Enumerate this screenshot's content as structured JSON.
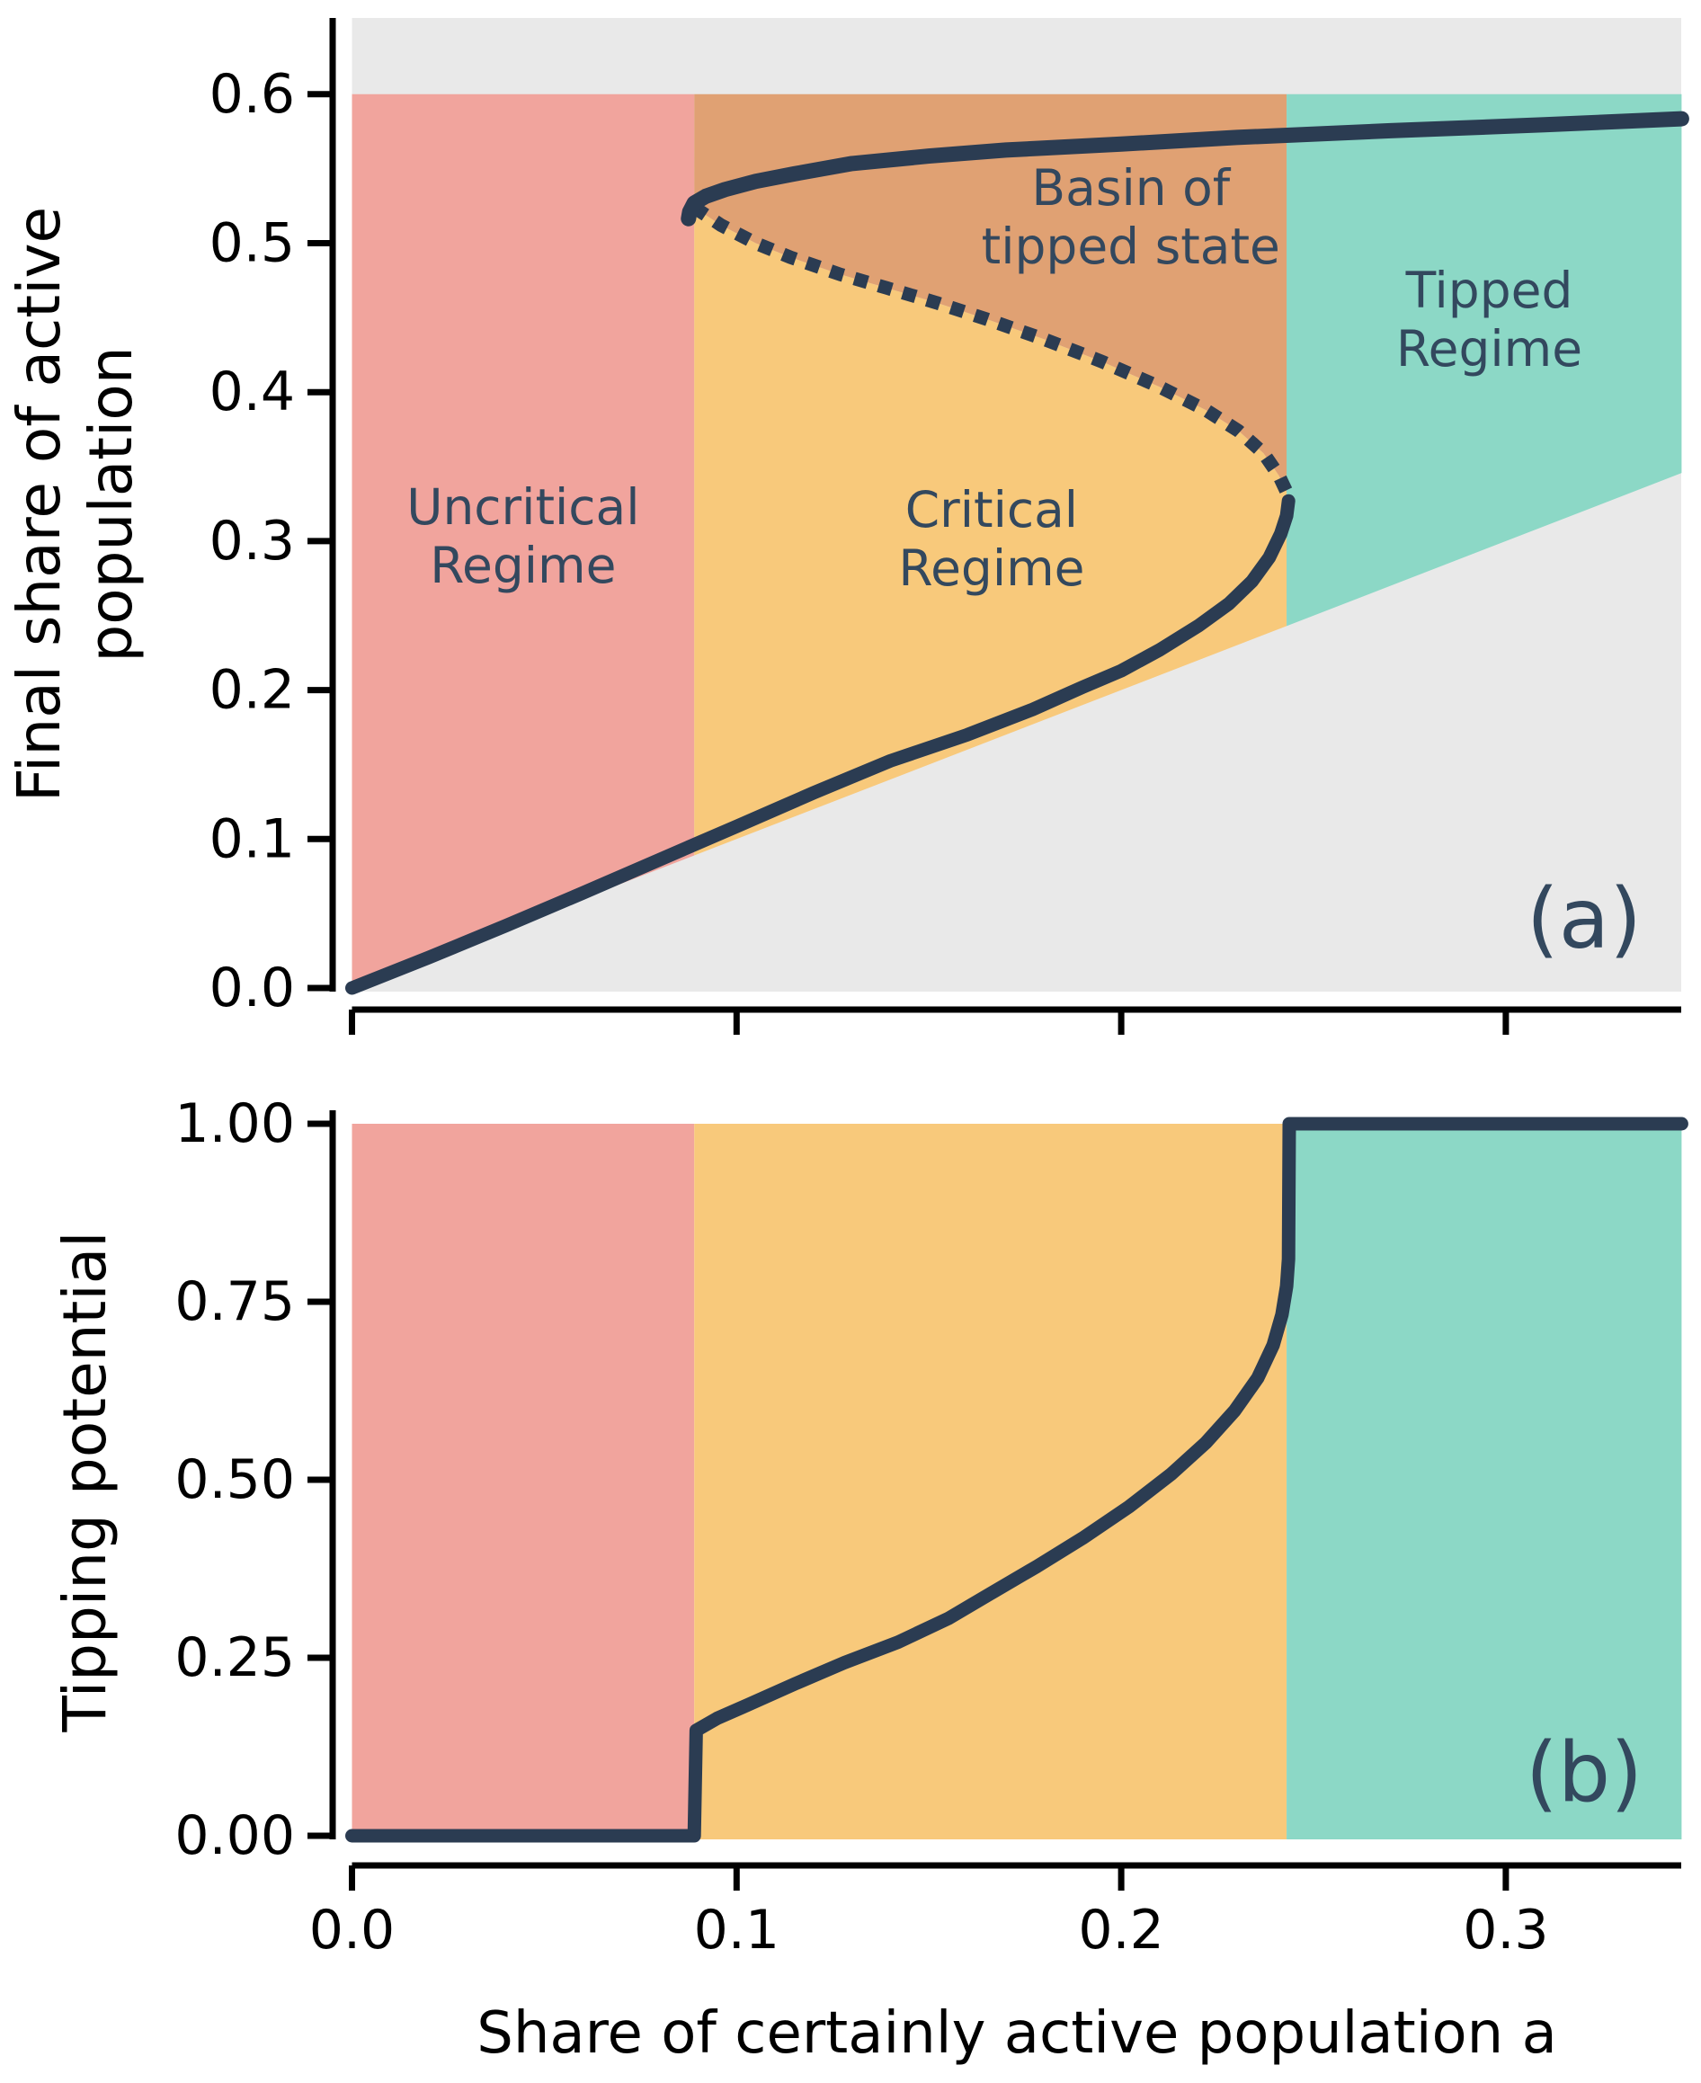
{
  "colors": {
    "uncritical": "#F1A49D",
    "critical": "#F8C97B",
    "basin": "#E0A173",
    "tipped": "#8CD8C6",
    "outside": "#E9E9E9",
    "curve": "#2B3C52",
    "annotation_text": "#33485E",
    "axis": "#000000"
  },
  "chart_data": [
    {
      "id": "a",
      "type": "area",
      "panel_label": "(a)",
      "ylabel": "Final share of active\npopulation",
      "xlim": [
        0,
        0.3457
      ],
      "ylim": [
        0,
        0.652
      ],
      "grid": false,
      "region_boundaries": {
        "fold_upper_a": 0.089,
        "fold_lower_a": 0.243,
        "region_top_y": 0.6
      },
      "regions": [
        {
          "name": "Uncritical Regime",
          "from_a": 0.0,
          "to_a": 0.089,
          "color_key": "uncritical"
        },
        {
          "name": "Critical Regime",
          "from_a": 0.089,
          "to_a": 0.243,
          "color_key": "critical"
        },
        {
          "name": "Basin of tipped state",
          "from_a": 0.089,
          "to_a": 0.243,
          "color_key": "basin"
        },
        {
          "name": "Tipped Regime",
          "from_a": 0.243,
          "to_a": 0.3457,
          "color_key": "tipped"
        }
      ],
      "yticks": [
        {
          "v": 0.0,
          "label": "0.0"
        },
        {
          "v": 0.1,
          "label": "0.1"
        },
        {
          "v": 0.2,
          "label": "0.2"
        },
        {
          "v": 0.3,
          "label": "0.3"
        },
        {
          "v": 0.4,
          "label": "0.4"
        },
        {
          "v": 0.5,
          "label": "0.5"
        },
        {
          "v": 0.6,
          "label": "0.6"
        }
      ],
      "xticks": [
        {
          "v": 0.0,
          "label": ""
        },
        {
          "v": 0.1,
          "label": ""
        },
        {
          "v": 0.2,
          "label": ""
        },
        {
          "v": 0.3,
          "label": ""
        }
      ],
      "series": [
        {
          "name": "lower-stable-branch",
          "style": "solid",
          "width": 15,
          "points": [
            [
              0.0,
              0.0
            ],
            [
              0.02,
              0.0205
            ],
            [
              0.04,
              0.0418
            ],
            [
              0.06,
              0.0638
            ],
            [
              0.08,
              0.0862
            ],
            [
              0.1,
              0.1085
            ],
            [
              0.12,
              0.131
            ],
            [
              0.14,
              0.1525
            ],
            [
              0.16,
              0.17
            ],
            [
              0.177,
              0.187
            ],
            [
              0.19,
              0.202
            ],
            [
              0.2,
              0.213
            ],
            [
              0.21,
              0.227
            ],
            [
              0.22,
              0.243
            ],
            [
              0.228,
              0.258
            ],
            [
              0.234,
              0.273
            ],
            [
              0.2385,
              0.289
            ],
            [
              0.2415,
              0.305
            ],
            [
              0.243,
              0.317
            ],
            [
              0.2435,
              0.327
            ]
          ]
        },
        {
          "name": "unstable-branch",
          "style": "dotted",
          "width": 15,
          "points": [
            [
              0.089,
              0.524
            ],
            [
              0.096,
              0.512
            ],
            [
              0.105,
              0.5
            ],
            [
              0.114,
              0.4905
            ],
            [
              0.127,
              0.479
            ],
            [
              0.139,
              0.47
            ],
            [
              0.152,
              0.46
            ],
            [
              0.165,
              0.449
            ],
            [
              0.18,
              0.4355
            ],
            [
              0.195,
              0.4205
            ],
            [
              0.21,
              0.4035
            ],
            [
              0.222,
              0.388
            ],
            [
              0.2305,
              0.374
            ],
            [
              0.237,
              0.359
            ],
            [
              0.241,
              0.344
            ],
            [
              0.243,
              0.333
            ],
            [
              0.2435,
              0.327
            ]
          ]
        },
        {
          "name": "upper-stable-branch",
          "style": "solid",
          "width": 17,
          "points": [
            [
              0.0875,
              0.5165
            ],
            [
              0.0878,
              0.521
            ],
            [
              0.089,
              0.527
            ],
            [
              0.092,
              0.5315
            ],
            [
              0.097,
              0.536
            ],
            [
              0.105,
              0.5415
            ],
            [
              0.115,
              0.5465
            ],
            [
              0.13,
              0.5535
            ],
            [
              0.15,
              0.5585
            ],
            [
              0.17,
              0.5625
            ],
            [
              0.2,
              0.5665
            ],
            [
              0.23,
              0.571
            ],
            [
              0.27,
              0.5755
            ],
            [
              0.31,
              0.5795
            ],
            [
              0.3457,
              0.5835
            ]
          ]
        }
      ],
      "annotations": [
        {
          "name": "uncritical-regime-label",
          "text": "Uncritical\nRegime",
          "a": 0.0445,
          "y": 0.303
        },
        {
          "name": "critical-regime-label",
          "text": "Critical\nRegime",
          "a": 0.1663,
          "y": 0.301
        },
        {
          "name": "basin-label",
          "text": "Basin of\ntipped state",
          "a": 0.2025,
          "y": 0.5175
        },
        {
          "name": "tipped-regime-label",
          "text": "Tipped\nRegime",
          "a": 0.2957,
          "y": 0.4485
        }
      ]
    },
    {
      "id": "b",
      "type": "line",
      "panel_label": "(b)",
      "ylabel": "Tipping potential",
      "xlabel": "Share of certainly active population a",
      "xlim": [
        0,
        0.3457
      ],
      "ylim": [
        0,
        1.0
      ],
      "grid": false,
      "regions": [
        {
          "name": "Uncritical Regime",
          "from_a": 0.0,
          "to_a": 0.089,
          "color_key": "uncritical"
        },
        {
          "name": "Critical Regime",
          "from_a": 0.089,
          "to_a": 0.243,
          "color_key": "critical"
        },
        {
          "name": "Tipped Regime",
          "from_a": 0.243,
          "to_a": 0.3457,
          "color_key": "tipped"
        }
      ],
      "yticks": [
        {
          "v": 0.0,
          "label": "0.00"
        },
        {
          "v": 0.25,
          "label": "0.25"
        },
        {
          "v": 0.5,
          "label": "0.50"
        },
        {
          "v": 0.75,
          "label": "0.75"
        },
        {
          "v": 1.0,
          "label": "1.00"
        }
      ],
      "xticks": [
        {
          "v": 0.0,
          "label": "0.0"
        },
        {
          "v": 0.1,
          "label": "0.1"
        },
        {
          "v": 0.2,
          "label": "0.2"
        },
        {
          "v": 0.3,
          "label": "0.3"
        }
      ],
      "series": [
        {
          "name": "tipping-potential",
          "style": "solid",
          "width": 15,
          "points": [
            [
              0.0,
              0.0
            ],
            [
              0.089,
              0.0
            ],
            [
              0.0895,
              0.148
            ],
            [
              0.095,
              0.165
            ],
            [
              0.103,
              0.184
            ],
            [
              0.115,
              0.213
            ],
            [
              0.128,
              0.243
            ],
            [
              0.142,
              0.272
            ],
            [
              0.155,
              0.305
            ],
            [
              0.166,
              0.34
            ],
            [
              0.178,
              0.378
            ],
            [
              0.19,
              0.418
            ],
            [
              0.202,
              0.462
            ],
            [
              0.213,
              0.508
            ],
            [
              0.222,
              0.552
            ],
            [
              0.2295,
              0.597
            ],
            [
              0.2355,
              0.643
            ],
            [
              0.2395,
              0.689
            ],
            [
              0.2418,
              0.732
            ],
            [
              0.243,
              0.772
            ],
            [
              0.2435,
              0.81
            ],
            [
              0.2437,
              1.0
            ],
            [
              0.3457,
              1.0
            ]
          ]
        }
      ]
    }
  ]
}
